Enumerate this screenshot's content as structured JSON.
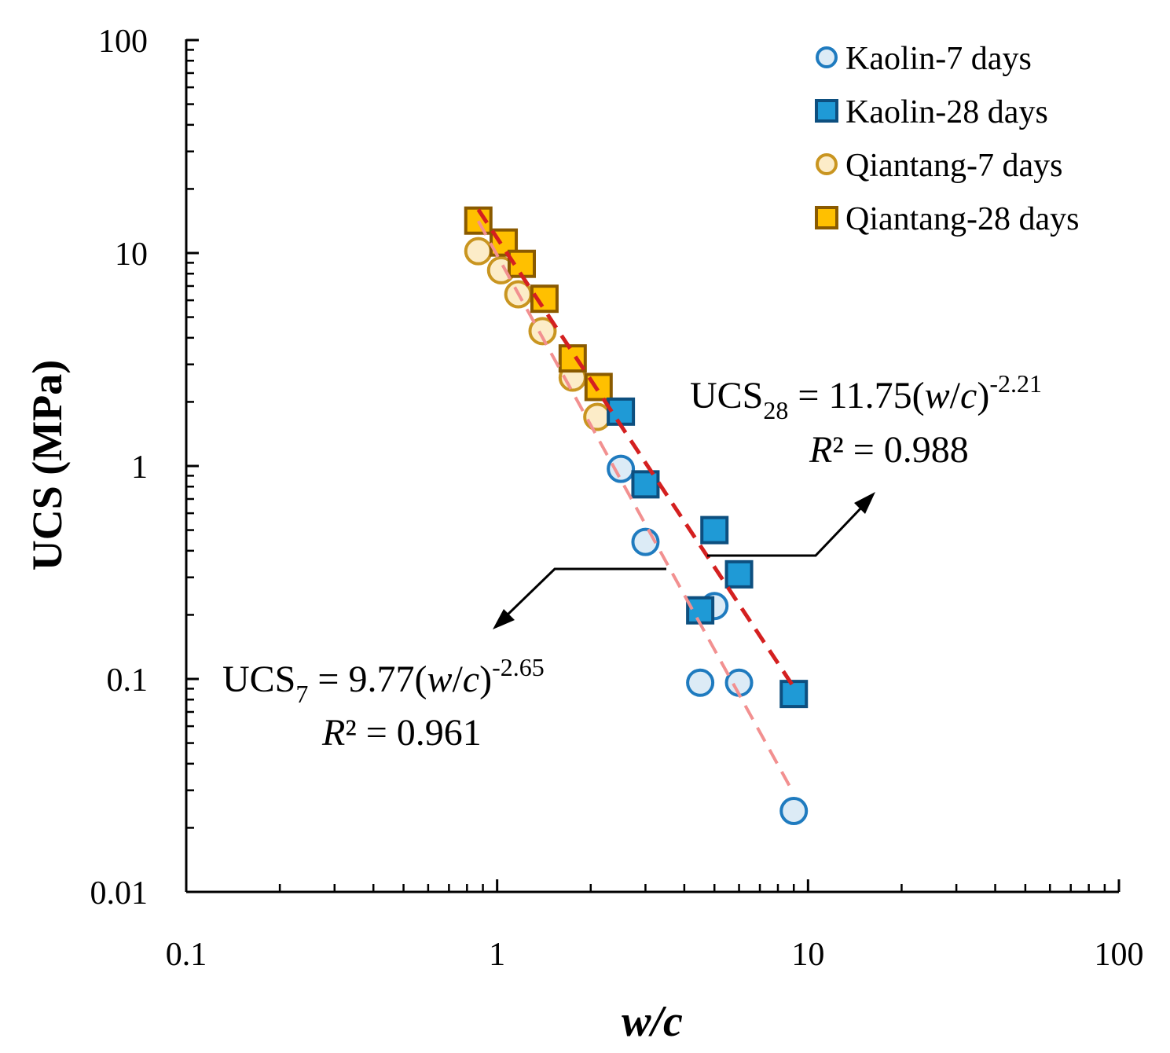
{
  "chart_data": {
    "type": "scatter",
    "x_scale": "log",
    "y_scale": "log",
    "xlabel_parts": [
      "w",
      "/",
      "c"
    ],
    "ylabel": "UCS (MPa)",
    "xlim": [
      0.1,
      100
    ],
    "ylim": [
      0.01,
      100
    ],
    "x_ticks": [
      {
        "value": 0.1,
        "label": "0.1"
      },
      {
        "value": 1,
        "label": "1"
      },
      {
        "value": 10,
        "label": "10"
      },
      {
        "value": 100,
        "label": "100"
      }
    ],
    "y_ticks": [
      {
        "value": 0.01,
        "label": "0.01"
      },
      {
        "value": 0.1,
        "label": "0.1"
      },
      {
        "value": 1,
        "label": "1"
      },
      {
        "value": 10,
        "label": "10"
      },
      {
        "value": 100,
        "label": "100"
      }
    ],
    "legend_position": "top-right",
    "series": [
      {
        "name": "Kaolin-7 days",
        "marker": "circle",
        "fill": "#dcebf6",
        "stroke": "#1f7bbf",
        "points": [
          [
            2.5,
            0.97
          ],
          [
            3.0,
            0.44
          ],
          [
            5.0,
            0.22
          ],
          [
            4.5,
            0.096
          ],
          [
            6.0,
            0.096
          ],
          [
            9.0,
            0.024
          ]
        ]
      },
      {
        "name": "Kaolin-28 days",
        "marker": "square",
        "fill": "#1f9ad6",
        "stroke": "#0d4f7f",
        "points": [
          [
            2.5,
            1.8
          ],
          [
            3.0,
            0.82
          ],
          [
            5.0,
            0.5
          ],
          [
            6.0,
            0.31
          ],
          [
            4.5,
            0.21
          ],
          [
            9.0,
            0.085
          ]
        ]
      },
      {
        "name": "Qiantang-7 days",
        "marker": "circle",
        "fill": "#fcecc8",
        "stroke": "#c99520",
        "points": [
          [
            0.87,
            10.2
          ],
          [
            1.03,
            8.3
          ],
          [
            1.17,
            6.4
          ],
          [
            1.4,
            4.3
          ],
          [
            1.75,
            2.6
          ],
          [
            2.1,
            1.7
          ]
        ]
      },
      {
        "name": "Qiantang-28 days",
        "marker": "square",
        "fill": "#ffc000",
        "stroke": "#8a5a00",
        "points": [
          [
            0.87,
            14.2
          ],
          [
            1.05,
            11.2
          ],
          [
            1.2,
            8.9
          ],
          [
            1.42,
            6.1
          ],
          [
            1.75,
            3.2
          ],
          [
            2.12,
            2.35
          ]
        ]
      }
    ],
    "trendlines": [
      {
        "name": "UCS28 fit",
        "coef": 11.75,
        "exponent": -2.21,
        "x_range": [
          0.87,
          9.0
        ],
        "color": "#d42020",
        "dash": "20,12",
        "width": 5
      },
      {
        "name": "UCS7 fit",
        "coef": 9.77,
        "exponent": -2.65,
        "x_range": [
          0.87,
          9.0
        ],
        "color": "#f29090",
        "dash": "20,12",
        "width": 4
      }
    ],
    "annotations": {
      "eq28": {
        "lhs": "UCS",
        "sub": "28",
        "mid": " = 11.75(",
        "w": "w",
        "slash": "/",
        "c": "c",
        "close": ")",
        "sup": "-2.21"
      },
      "r2_28": {
        "r": "R",
        "rest": "² = 0.988"
      },
      "eq7": {
        "lhs": "UCS",
        "sub": "7",
        "mid": " = 9.77(",
        "w": "w",
        "slash": "/",
        "c": "c",
        "close": ")",
        "sup": "-2.65"
      },
      "r2_7": {
        "r": "R",
        "rest": "² = 0.961"
      }
    }
  }
}
